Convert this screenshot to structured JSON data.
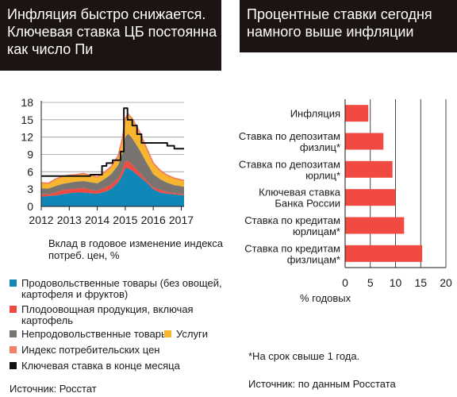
{
  "left_panel": {
    "title_lines": [
      "Инфляция быстро снижается.",
      "Ключевая ставка ЦБ постоянна",
      "как число Пи"
    ],
    "subtitle_lines": [
      "Вклад в годовое изменение индекса",
      "потреб. цен, %"
    ],
    "source": "Источник: Росстат",
    "colors": {
      "food": "#1187b8",
      "produce": "#ef4b42",
      "nonfood": "#7a7471",
      "services": "#f8b52e",
      "cpi": "#f47f68",
      "key_rate": "#111111"
    },
    "legend": [
      {
        "key": "food",
        "lines": [
          "Продовольственные товары (без овощей,",
          "картофеля и фруктов)"
        ]
      },
      {
        "key": "produce",
        "lines": [
          "Плодоовощная продукция, включая",
          "картофель"
        ]
      },
      {
        "key": "nonfood",
        "lines": [
          "Непродовольственные товары"
        ]
      },
      {
        "key": "cpi",
        "lines": [
          "Индекс потребительских цен"
        ]
      },
      {
        "key": "key_rate",
        "lines": [
          "Ключевая ставка в конце месяца"
        ]
      }
    ],
    "legend_services": {
      "key": "services",
      "label": "Услуги"
    }
  },
  "right_panel": {
    "title_lines": [
      "Процентные ставки сегодня",
      "намного выше инфляции"
    ],
    "footnote": "*На срок свыше 1 года.",
    "source": "Источник: по данным Росстата",
    "bar_color": "#f04a43"
  },
  "chart_data": [
    {
      "type": "area",
      "title": "Вклад в годовое изменение индекса потреб. цен, %",
      "x_tick_labels": [
        "2012",
        "2013",
        "2014",
        "2015",
        "2016",
        "2017"
      ],
      "y_ticks": [
        0,
        3,
        6,
        9,
        12,
        15,
        18
      ],
      "ylim": [
        0,
        18
      ],
      "xlim": [
        2012,
        2017.1
      ],
      "grid": "horizontal",
      "x": [
        2012.0,
        2012.25,
        2012.5,
        2012.75,
        2013.0,
        2013.25,
        2013.5,
        2013.75,
        2014.0,
        2014.25,
        2014.5,
        2014.75,
        2014.9,
        2015.0,
        2015.1,
        2015.25,
        2015.5,
        2015.75,
        2016.0,
        2016.25,
        2016.5,
        2016.75,
        2017.0,
        2017.1
      ],
      "stacked_series": [
        {
          "name": "Продовольственные товары (без овощей, картофеля и фруктов)",
          "key": "food",
          "values": [
            1.7,
            1.8,
            1.9,
            2.1,
            2.3,
            2.4,
            2.4,
            2.3,
            2.2,
            2.5,
            3.0,
            4.2,
            5.4,
            6.6,
            6.6,
            6.2,
            5.2,
            4.2,
            3.0,
            2.4,
            2.2,
            2.1,
            2.0,
            1.9
          ]
        },
        {
          "name": "Плодоовощная продукция, включая картофель",
          "key": "produce",
          "values": [
            0.4,
            0.3,
            0.5,
            0.7,
            0.7,
            0.7,
            0.8,
            0.6,
            0.5,
            0.7,
            0.8,
            0.7,
            0.9,
            1.2,
            1.3,
            1.0,
            0.7,
            0.3,
            0.3,
            0.5,
            0.3,
            0.2,
            0.2,
            0.2
          ]
        },
        {
          "name": "Непродовольственные товары",
          "key": "nonfood",
          "values": [
            1.0,
            1.0,
            1.1,
            1.1,
            1.1,
            1.2,
            1.2,
            1.3,
            1.3,
            1.5,
            1.8,
            2.3,
            3.0,
            4.2,
            4.7,
            4.6,
            4.0,
            3.2,
            2.3,
            1.8,
            1.6,
            1.4,
            1.3,
            1.3
          ]
        },
        {
          "name": "Услуги",
          "key": "services",
          "values": [
            1.0,
            0.9,
            1.2,
            1.3,
            1.3,
            1.2,
            1.3,
            1.2,
            1.1,
            1.2,
            1.3,
            1.6,
            2.5,
            3.2,
            3.4,
            3.4,
            3.1,
            2.5,
            1.9,
            1.5,
            1.3,
            1.2,
            1.1,
            1.1
          ]
        }
      ],
      "line_series": [
        {
          "name": "Индекс потребительских цен",
          "key": "cpi",
          "values": [
            4.1,
            4.0,
            4.7,
            5.2,
            5.4,
            5.5,
            5.7,
            5.4,
            5.1,
            5.9,
            6.9,
            8.8,
            11.8,
            15.2,
            16.0,
            15.2,
            13.0,
            10.2,
            7.5,
            6.2,
            5.4,
            4.9,
            4.6,
            4.5
          ]
        },
        {
          "name": "Ключевая ставка в конце месяца",
          "key": "key_rate",
          "step": true,
          "x": [
            2012.0,
            2013.75,
            2013.75,
            2014.17,
            2014.17,
            2014.33,
            2014.33,
            2014.55,
            2014.55,
            2014.83,
            2014.83,
            2014.95,
            2014.95,
            2015.08,
            2015.08,
            2015.25,
            2015.25,
            2015.42,
            2015.42,
            2015.58,
            2015.58,
            2016.5,
            2016.5,
            2016.75,
            2016.75,
            2017.1
          ],
          "values": [
            5.25,
            5.25,
            5.5,
            5.5,
            7.0,
            7.0,
            7.5,
            7.5,
            8.0,
            8.0,
            9.5,
            9.5,
            17.0,
            17.0,
            15.0,
            15.0,
            14.0,
            14.0,
            12.5,
            12.5,
            11.0,
            11.0,
            10.5,
            10.5,
            10.0,
            10.0
          ]
        }
      ]
    },
    {
      "type": "bar",
      "orientation": "horizontal",
      "categories": [
        [
          "Инфляция"
        ],
        [
          "Ставка по депозитам",
          "физлиц*"
        ],
        [
          "Ставка по депозитам",
          "юрлиц*"
        ],
        [
          "Ключевая ставка",
          "Банка России"
        ],
        [
          "Ставка по кредитам",
          "юрлицам*"
        ],
        [
          "Ставка по кредитам",
          "физлицам*"
        ]
      ],
      "values": [
        4.6,
        7.6,
        9.4,
        10.0,
        11.7,
        15.3
      ],
      "xlim": [
        0,
        20
      ],
      "x_ticks": [
        0,
        5,
        10,
        15,
        20
      ],
      "xlabel": "% годовых",
      "grid": "vertical"
    }
  ]
}
